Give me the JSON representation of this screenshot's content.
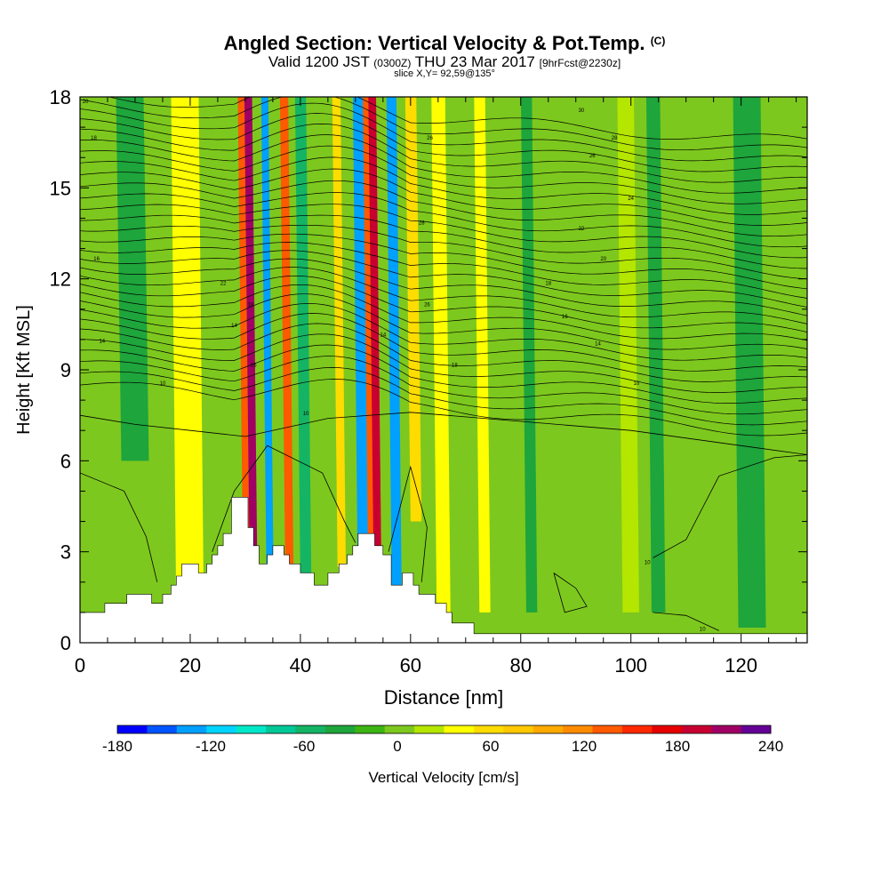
{
  "title": {
    "main": "Angled Section: Vertical Velocity & Pot.Temp.",
    "copyright": "(C)",
    "valid_prefix": "Valid 1200 JST",
    "valid_utc": "(0300Z)",
    "valid_date": "THU 23 Mar 2017",
    "forecast": "[9hrFcst@2230z]",
    "slice": "slice X,Y= 92,59@135°"
  },
  "chart_data": {
    "type": "heatmap",
    "xlabel": "Distance [nm]",
    "ylabel": "Height [Kft MSL]",
    "xlim": [
      0,
      132
    ],
    "ylim": [
      0,
      18
    ],
    "x_ticks": [
      0,
      20,
      40,
      60,
      80,
      100,
      120
    ],
    "y_ticks": [
      0,
      3,
      6,
      9,
      12,
      15,
      18
    ],
    "colorbar": {
      "label": "Vertical Velocity [cm/s]",
      "min": -180,
      "max": 240,
      "step": 20,
      "tick_labels": [
        -180,
        -120,
        -60,
        0,
        60,
        120,
        180,
        240
      ],
      "colors": [
        "#0000ff",
        "#0055ff",
        "#00a0ff",
        "#00d4ff",
        "#00e8c8",
        "#00c896",
        "#14b464",
        "#1ea53c",
        "#3cb414",
        "#7dc81e",
        "#b4e600",
        "#ffff00",
        "#ffdc00",
        "#ffc800",
        "#ffaa00",
        "#ff8c00",
        "#ff5a00",
        "#ff2800",
        "#e60000",
        "#c80032",
        "#a00064",
        "#640096"
      ]
    },
    "velocity_bands": [
      {
        "x": 31.5,
        "w": 1.4,
        "h_min": 2.2,
        "v": 230
      },
      {
        "x": 30.8,
        "w": 2.4,
        "h_min": 2.2,
        "v": 150
      },
      {
        "x": 34.5,
        "w": 1.3,
        "h_min": 2.0,
        "v": -140
      },
      {
        "x": 38.0,
        "w": 1.5,
        "h_min": 2.5,
        "v": 150
      },
      {
        "x": 41.0,
        "w": 2.0,
        "h_min": 2.0,
        "v": -50
      },
      {
        "x": 47.5,
        "w": 1.5,
        "h_min": 2.5,
        "v": 60
      },
      {
        "x": 51.5,
        "w": 2.0,
        "h_min": 0.5,
        "v": -140
      },
      {
        "x": 54.0,
        "w": 1.4,
        "h_min": 2.5,
        "v": 210
      },
      {
        "x": 53.5,
        "w": 2.4,
        "h_min": 2.5,
        "v": 140
      },
      {
        "x": 57.5,
        "w": 1.8,
        "h_min": 1.5,
        "v": -140
      },
      {
        "x": 61.0,
        "w": 2.0,
        "h_min": 4.0,
        "v": 70
      },
      {
        "x": 66.0,
        "w": 2.5,
        "h_min": 1.0,
        "v": 55
      },
      {
        "x": 73.5,
        "w": 2.0,
        "h_min": 1.0,
        "v": 40
      },
      {
        "x": 82.0,
        "w": 2.0,
        "h_min": 1.0,
        "v": -40
      },
      {
        "x": 100.0,
        "w": 3.0,
        "h_min": 1.0,
        "v": 30
      },
      {
        "x": 105.0,
        "w": 2.5,
        "h_min": 1.0,
        "v": -40
      },
      {
        "x": 20.0,
        "w": 5.0,
        "h_min": 0.5,
        "v": 50
      },
      {
        "x": 10.0,
        "w": 5.0,
        "h_min": 6.0,
        "v": -30
      },
      {
        "x": 122.0,
        "w": 5.0,
        "h_min": 0.5,
        "v": -25
      }
    ],
    "terrain": [
      [
        0,
        1.0
      ],
      [
        4.5,
        1.0
      ],
      [
        4.5,
        1.3
      ],
      [
        8.5,
        1.3
      ],
      [
        8.5,
        1.6
      ],
      [
        13,
        1.6
      ],
      [
        13,
        1.3
      ],
      [
        15,
        1.3
      ],
      [
        15,
        1.6
      ],
      [
        16.5,
        1.6
      ],
      [
        16.5,
        1.9
      ],
      [
        17.5,
        1.9
      ],
      [
        17.5,
        2.2
      ],
      [
        18.5,
        2.2
      ],
      [
        18.5,
        2.6
      ],
      [
        21.5,
        2.6
      ],
      [
        21.5,
        2.3
      ],
      [
        23,
        2.3
      ],
      [
        23,
        2.6
      ],
      [
        24,
        2.6
      ],
      [
        24,
        2.9
      ],
      [
        25,
        2.9
      ],
      [
        25,
        3.2
      ],
      [
        26,
        3.2
      ],
      [
        26,
        3.6
      ],
      [
        27.5,
        3.6
      ],
      [
        27.5,
        4.8
      ],
      [
        30.5,
        4.8
      ],
      [
        30.5,
        3.8
      ],
      [
        31.5,
        3.8
      ],
      [
        31.5,
        3.2
      ],
      [
        32.5,
        3.2
      ],
      [
        32.5,
        2.6
      ],
      [
        34,
        2.6
      ],
      [
        34,
        2.9
      ],
      [
        35,
        2.9
      ],
      [
        35,
        3.2
      ],
      [
        37,
        3.2
      ],
      [
        37,
        2.9
      ],
      [
        38,
        2.9
      ],
      [
        38,
        2.6
      ],
      [
        40,
        2.6
      ],
      [
        40,
        2.3
      ],
      [
        42.5,
        2.3
      ],
      [
        42.5,
        1.9
      ],
      [
        45,
        1.9
      ],
      [
        45,
        2.3
      ],
      [
        47,
        2.3
      ],
      [
        47,
        2.6
      ],
      [
        48.5,
        2.6
      ],
      [
        48.5,
        2.9
      ],
      [
        49.5,
        2.9
      ],
      [
        49.5,
        3.2
      ],
      [
        50.5,
        3.2
      ],
      [
        50.5,
        3.6
      ],
      [
        53.5,
        3.6
      ],
      [
        53.5,
        3.2
      ],
      [
        55,
        3.2
      ],
      [
        55,
        2.9
      ],
      [
        56.5,
        2.9
      ],
      [
        56.5,
        1.9
      ],
      [
        58.5,
        1.9
      ],
      [
        58.5,
        2.3
      ],
      [
        60.5,
        2.3
      ],
      [
        60.5,
        1.9
      ],
      [
        61.5,
        1.9
      ],
      [
        61.5,
        1.6
      ],
      [
        64.5,
        1.6
      ],
      [
        64.5,
        1.3
      ],
      [
        66.5,
        1.3
      ],
      [
        66.5,
        1.0
      ],
      [
        67.5,
        1.0
      ],
      [
        67.5,
        0.65
      ],
      [
        71.5,
        0.65
      ],
      [
        71.5,
        0.3
      ],
      [
        132,
        0.3
      ]
    ],
    "isentrope_labels": [
      {
        "x": 1,
        "y": 17.8,
        "text": "20"
      },
      {
        "x": 2.5,
        "y": 16.6,
        "text": "18"
      },
      {
        "x": 3,
        "y": 12.6,
        "text": "16"
      },
      {
        "x": 4,
        "y": 9.9,
        "text": "14"
      },
      {
        "x": 15,
        "y": 8.5,
        "text": "10"
      },
      {
        "x": 26,
        "y": 11.8,
        "text": "22"
      },
      {
        "x": 28,
        "y": 10.4,
        "text": "14"
      },
      {
        "x": 31,
        "y": 11.1,
        "text": "18"
      },
      {
        "x": 31.5,
        "y": 9.1,
        "text": "16"
      },
      {
        "x": 41,
        "y": 7.5,
        "text": "10"
      },
      {
        "x": 55,
        "y": 10.1,
        "text": "14"
      },
      {
        "x": 63,
        "y": 11.1,
        "text": "26"
      },
      {
        "x": 62,
        "y": 13.8,
        "text": "28"
      },
      {
        "x": 63.5,
        "y": 16.6,
        "text": "26"
      },
      {
        "x": 68,
        "y": 9.1,
        "text": "18"
      },
      {
        "x": 85,
        "y": 11.8,
        "text": "18"
      },
      {
        "x": 88,
        "y": 10.7,
        "text": "16"
      },
      {
        "x": 94,
        "y": 9.8,
        "text": "14"
      },
      {
        "x": 101,
        "y": 8.5,
        "text": "10"
      },
      {
        "x": 91,
        "y": 17.5,
        "text": "30"
      },
      {
        "x": 97,
        "y": 16.6,
        "text": "28"
      },
      {
        "x": 93,
        "y": 16.0,
        "text": "26"
      },
      {
        "x": 100,
        "y": 14.6,
        "text": "24"
      },
      {
        "x": 91,
        "y": 13.6,
        "text": "22"
      },
      {
        "x": 95,
        "y": 12.6,
        "text": "20"
      },
      {
        "x": 103,
        "y": 2.6,
        "text": "10"
      },
      {
        "x": 113,
        "y": 0.4,
        "text": "10"
      }
    ]
  }
}
